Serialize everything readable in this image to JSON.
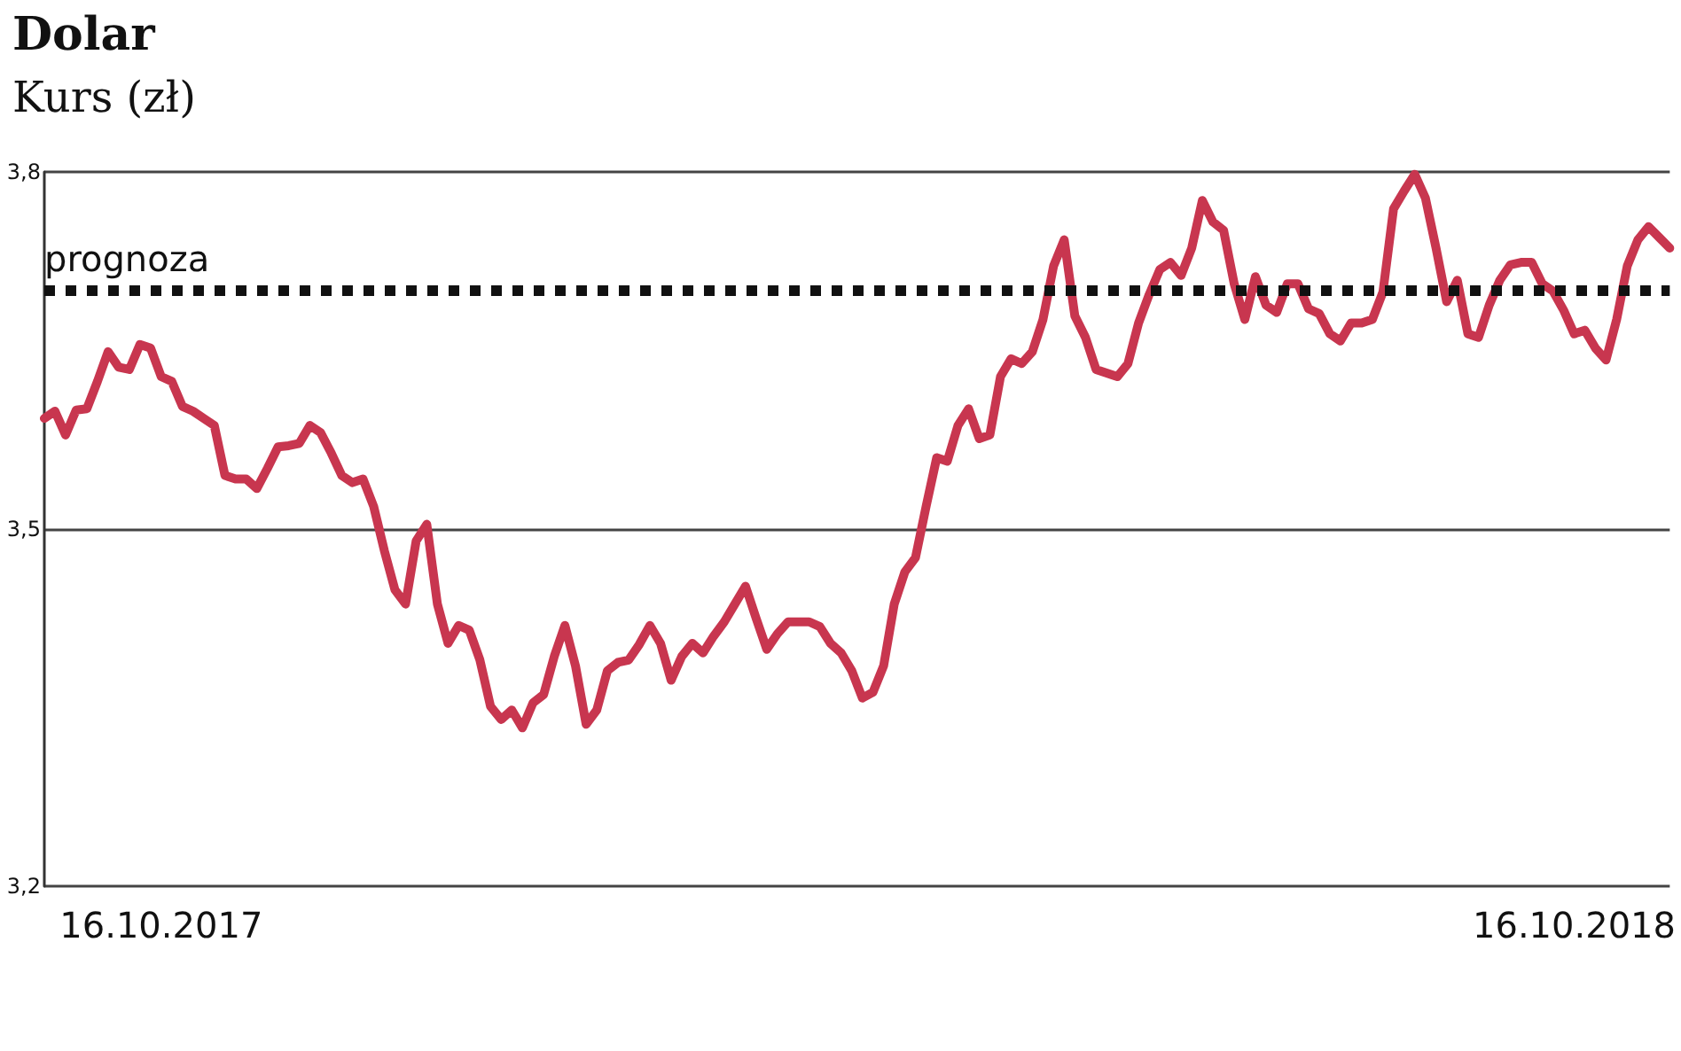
{
  "chart_data": {
    "type": "line",
    "title": "Dolar",
    "subtitle": "Kurs (zł)",
    "categories": [
      null,
      null,
      null,
      null,
      null,
      null,
      null,
      null,
      null,
      null,
      null,
      "16.10.2017",
      null,
      null,
      null,
      null,
      null,
      null,
      null,
      null,
      null,
      null,
      null,
      null,
      null,
      null,
      null,
      null,
      null,
      null,
      null,
      null,
      null,
      null,
      null,
      null,
      null,
      null,
      null,
      null,
      null,
      null,
      null,
      null,
      null,
      null,
      null,
      null,
      null,
      null,
      null,
      null,
      null,
      null,
      null,
      null,
      null,
      null,
      null,
      null,
      null,
      null,
      null,
      null,
      null,
      null,
      null,
      null,
      null,
      null,
      null,
      null,
      null,
      null,
      null,
      null,
      null,
      null,
      null,
      null,
      null,
      null,
      null,
      null,
      null,
      null,
      null,
      null,
      null,
      null,
      null,
      null,
      null,
      null,
      null,
      null,
      null,
      null,
      null,
      null,
      null,
      null,
      null,
      null,
      null,
      null,
      null,
      null,
      null,
      null,
      null,
      null,
      null,
      null,
      null,
      null,
      null,
      null,
      null,
      null,
      null,
      null,
      null,
      null,
      null,
      null,
      null,
      null,
      null,
      null,
      null,
      null,
      null,
      null,
      null,
      null,
      null,
      null,
      null,
      null,
      null,
      null,
      null,
      null,
      "16.10.2018",
      null,
      null,
      null,
      null,
      null,
      null,
      null,
      null,
      null
    ],
    "series": [
      {
        "color": "#c8364f",
        "values": [
          3.593,
          3.599,
          3.579,
          3.6,
          3.601,
          3.624,
          3.649,
          3.636,
          3.634,
          3.655,
          3.652,
          3.628,
          3.624,
          3.603,
          3.599,
          3.593,
          3.587,
          3.545,
          3.542,
          3.542,
          3.534,
          3.551,
          3.569,
          3.57,
          3.572,
          3.587,
          3.581,
          3.564,
          3.545,
          3.539,
          3.542,
          3.519,
          3.482,
          3.449,
          3.437,
          3.49,
          3.504,
          3.437,
          3.404,
          3.419,
          3.415,
          3.39,
          3.351,
          3.34,
          3.348,
          3.333,
          3.354,
          3.361,
          3.393,
          3.419,
          3.385,
          3.336,
          3.348,
          3.381,
          3.388,
          3.39,
          3.403,
          3.419,
          3.404,
          3.373,
          3.393,
          3.404,
          3.396,
          3.41,
          3.422,
          3.437,
          3.452,
          3.425,
          3.399,
          3.412,
          3.422,
          3.422,
          3.422,
          3.418,
          3.404,
          3.396,
          3.381,
          3.358,
          3.363,
          3.385,
          3.437,
          3.464,
          3.476,
          3.519,
          3.56,
          3.557,
          3.587,
          3.601,
          3.576,
          3.579,
          3.628,
          3.643,
          3.639,
          3.649,
          3.676,
          3.721,
          3.743,
          3.679,
          3.661,
          3.634,
          3.631,
          3.628,
          3.639,
          3.673,
          3.697,
          3.718,
          3.724,
          3.713,
          3.736,
          3.776,
          3.758,
          3.751,
          3.706,
          3.676,
          3.712,
          3.688,
          3.682,
          3.706,
          3.706,
          3.685,
          3.681,
          3.664,
          3.658,
          3.673,
          3.673,
          3.676,
          3.699,
          3.769,
          3.784,
          3.798,
          3.778,
          3.736,
          3.691,
          3.709,
          3.664,
          3.661,
          3.688,
          3.709,
          3.722,
          3.724,
          3.724,
          3.706,
          3.7,
          3.684,
          3.664,
          3.667,
          3.652,
          3.642,
          3.676,
          3.721,
          3.743,
          3.754,
          3.745,
          3.736
        ]
      }
    ],
    "ylim": [
      3.2,
      3.8
    ],
    "yticks": [
      {
        "value": 3.2,
        "label": "3,2"
      },
      {
        "value": 3.5,
        "label": "3,5"
      },
      {
        "value": 3.8,
        "label": "3,8"
      }
    ],
    "ref_lines": [
      {
        "axis": "y",
        "value": 3.7,
        "label": "prognoza",
        "color": "#111111",
        "line_style": "dotted"
      }
    ],
    "grid": "y",
    "marker": "none",
    "line_style": "solid"
  }
}
